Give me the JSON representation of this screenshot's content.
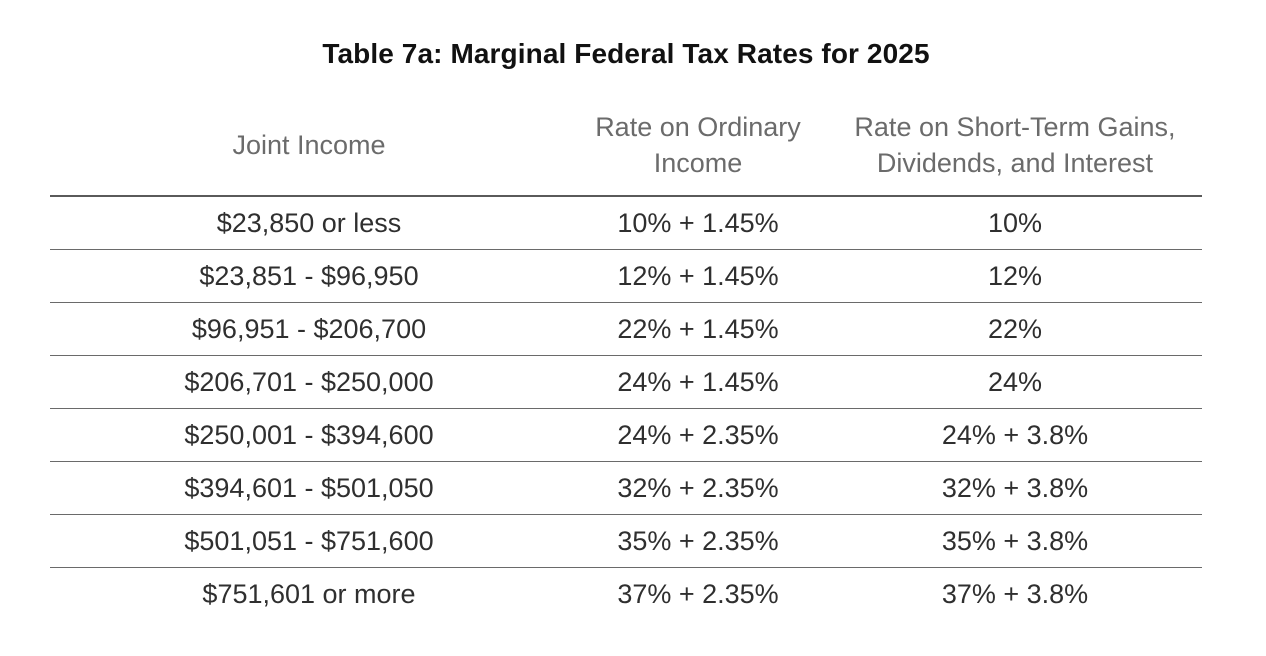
{
  "table": {
    "title": "Table 7a: Marginal Federal Tax Rates for 2025",
    "columns": [
      {
        "lines": [
          "Joint Income"
        ]
      },
      {
        "lines": [
          "Rate on Ordinary",
          "Income"
        ]
      },
      {
        "lines": [
          "Rate on Short-Term Gains,",
          "Dividends, and Interest"
        ]
      }
    ],
    "rows": [
      [
        "$23,850 or less",
        "10% + 1.45%",
        "10%"
      ],
      [
        "$23,851 - $96,950",
        "12% + 1.45%",
        "12%"
      ],
      [
        "$96,951 - $206,700",
        "22% + 1.45%",
        "22%"
      ],
      [
        "$206,701 - $250,000",
        "24% + 1.45%",
        "24%"
      ],
      [
        "$250,001 - $394,600",
        "24% + 2.35%",
        "24% + 3.8%"
      ],
      [
        "$394,601 - $501,050",
        "32% + 2.35%",
        "32% + 3.8%"
      ],
      [
        "$501,051 - $751,600",
        "35% + 2.35%",
        "35% + 3.8%"
      ],
      [
        "$751,601 or more",
        "37% + 2.35%",
        "37% + 3.8%"
      ]
    ]
  },
  "colors": {
    "title": "#111111",
    "header_text": "#6b6b6b",
    "cell_text": "#2f2f2f",
    "rule": "#5a5a5a"
  }
}
